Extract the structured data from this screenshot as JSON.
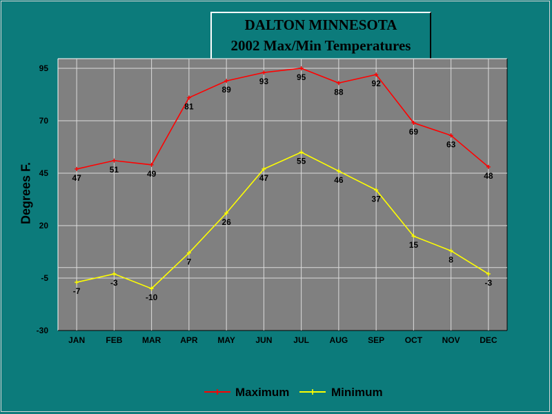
{
  "chart_data": {
    "type": "line",
    "title": [
      "DALTON MINNESOTA",
      "2002 Max/Min Temperatures"
    ],
    "ylabel": "Degrees F.",
    "xlabel": "",
    "categories": [
      "JAN",
      "FEB",
      "MAR",
      "APR",
      "MAY",
      "JUN",
      "JUL",
      "AUG",
      "SEP",
      "OCT",
      "NOV",
      "DEC"
    ],
    "yticks": [
      95,
      70,
      45,
      20,
      -5,
      -30
    ],
    "ylim": [
      -30,
      100
    ],
    "grid": true,
    "legend_position": "bottom",
    "series": [
      {
        "name": "Maximum",
        "color": "#ff0000",
        "values": [
          47,
          51,
          49,
          81,
          89,
          93,
          95,
          88,
          92,
          69,
          63,
          48
        ]
      },
      {
        "name": "Minimum",
        "color": "#ffff00",
        "values": [
          -7,
          -3,
          -10,
          7,
          26,
          47,
          55,
          46,
          37,
          15,
          8,
          -3
        ]
      }
    ]
  }
}
